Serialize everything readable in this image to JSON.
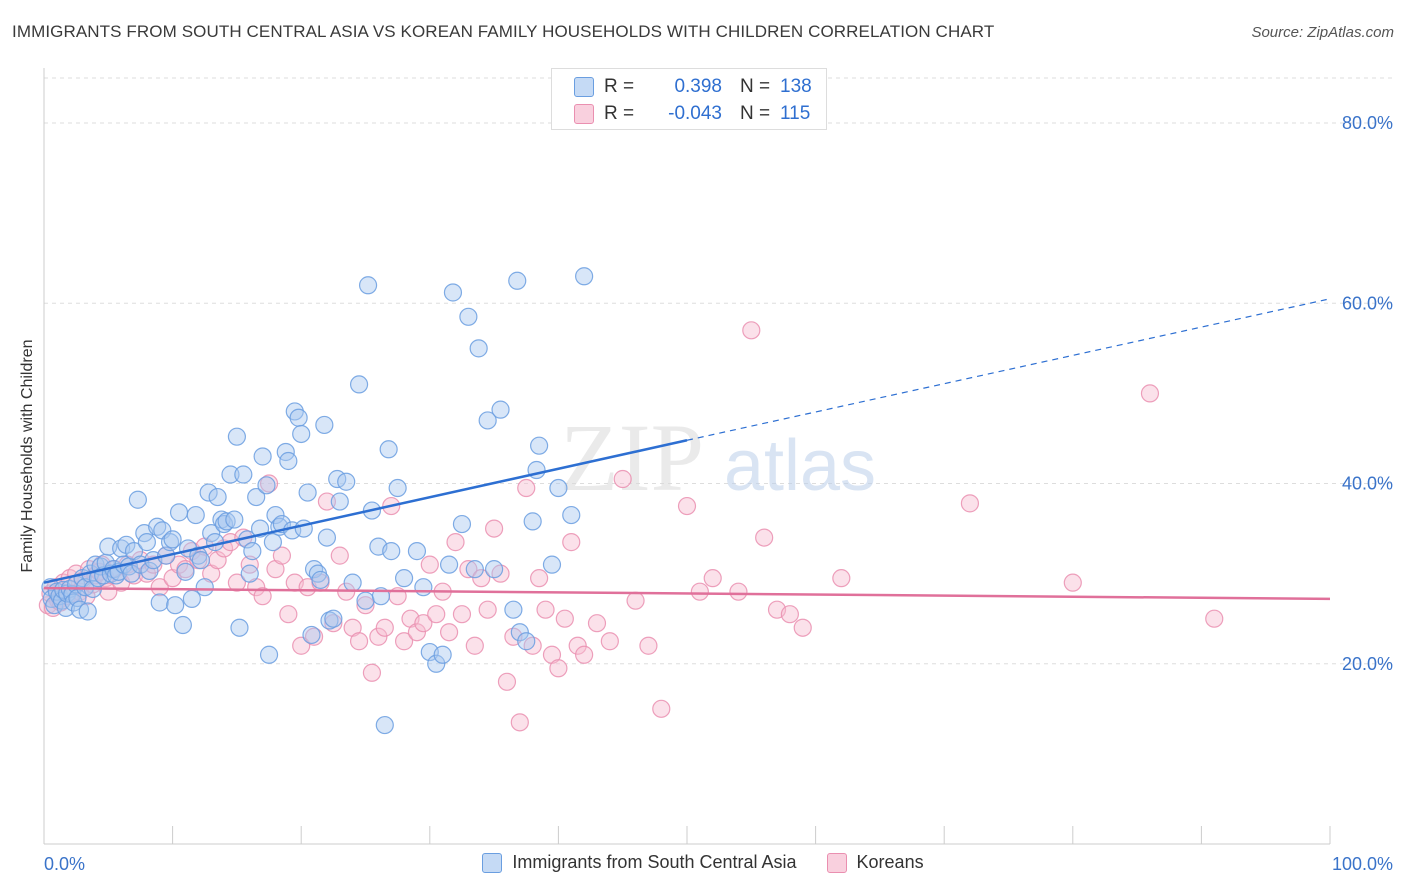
{
  "title": "IMMIGRANTS FROM SOUTH CENTRAL ASIA VS KOREAN FAMILY HOUSEHOLDS WITH CHILDREN CORRELATION CHART",
  "source": "Source: ZipAtlas.com",
  "watermark": {
    "zip": "ZIP",
    "atlas": "atlas"
  },
  "colors": {
    "blue_fill": "#a9c8f0",
    "blue_stroke": "#6a9ee0",
    "blue_line": "#2d6fd2",
    "pink_fill": "#f6bcd0",
    "pink_stroke": "#ea8fb0",
    "pink_line": "#e0709a",
    "tick_label": "#3a73c9",
    "grid": "#dddddd"
  },
  "legend": {
    "rows": [
      {
        "r_label": "R =",
        "r_value": "0.398",
        "n_label": "N =",
        "n_value": "138",
        "color": "blue"
      },
      {
        "r_label": "R =",
        "r_value": "-0.043",
        "n_label": "N =",
        "n_value": "115",
        "color": "pink"
      }
    ]
  },
  "chart_data": {
    "type": "scatter",
    "title": "IMMIGRANTS FROM SOUTH CENTRAL ASIA VS KOREAN FAMILY HOUSEHOLDS WITH CHILDREN CORRELATION CHART",
    "xlabel": "",
    "ylabel": "Family Households with Children",
    "xlim": [
      0,
      100
    ],
    "ylim": [
      0,
      85
    ],
    "x_tick_labels": [
      {
        "value": 0,
        "label": "0.0%"
      },
      {
        "value": 100,
        "label": "100.0%"
      }
    ],
    "y_tick_labels": [
      {
        "value": 20,
        "label": "20.0%"
      },
      {
        "value": 40,
        "label": "40.0%"
      },
      {
        "value": 60,
        "label": "60.0%"
      },
      {
        "value": 80,
        "label": "80.0%"
      }
    ],
    "grid": true,
    "legend_position": "bottom",
    "series": [
      {
        "name": "Immigrants from South Central Asia",
        "color": "blue",
        "trend": {
          "x0": 0,
          "y0": 29.0,
          "x1": 50,
          "y1": 44.8,
          "dashed_to_x": 100,
          "dashed_to_y": 60.5
        },
        "points": [
          [
            0.5,
            28.5
          ],
          [
            0.6,
            27.2
          ],
          [
            0.8,
            26.5
          ],
          [
            1.0,
            28.0
          ],
          [
            1.2,
            27.5
          ],
          [
            1.4,
            27.0
          ],
          [
            1.5,
            28.2
          ],
          [
            1.7,
            26.2
          ],
          [
            1.8,
            27.8
          ],
          [
            2.0,
            28.3
          ],
          [
            2.2,
            27.7
          ],
          [
            2.3,
            26.8
          ],
          [
            2.5,
            28.8
          ],
          [
            2.6,
            27.3
          ],
          [
            2.8,
            26.0
          ],
          [
            3.0,
            29.5
          ],
          [
            3.2,
            28.5
          ],
          [
            3.4,
            25.8
          ],
          [
            3.6,
            30.0
          ],
          [
            3.8,
            28.3
          ],
          [
            4.0,
            31.0
          ],
          [
            4.2,
            29.5
          ],
          [
            4.4,
            30.8
          ],
          [
            4.6,
            29.8
          ],
          [
            4.8,
            31.2
          ],
          [
            5.0,
            33.0
          ],
          [
            5.2,
            30.0
          ],
          [
            5.4,
            30.5
          ],
          [
            5.6,
            29.8
          ],
          [
            5.8,
            30.2
          ],
          [
            6.0,
            32.8
          ],
          [
            6.2,
            31.0
          ],
          [
            6.4,
            33.2
          ],
          [
            6.6,
            30.8
          ],
          [
            6.8,
            30.0
          ],
          [
            7.0,
            32.5
          ],
          [
            7.3,
            38.2
          ],
          [
            7.5,
            31.0
          ],
          [
            7.8,
            34.5
          ],
          [
            8.0,
            33.5
          ],
          [
            8.2,
            30.3
          ],
          [
            8.5,
            31.5
          ],
          [
            8.8,
            35.2
          ],
          [
            9.0,
            26.8
          ],
          [
            9.2,
            34.8
          ],
          [
            9.5,
            32.0
          ],
          [
            9.8,
            33.5
          ],
          [
            10.0,
            33.8
          ],
          [
            10.2,
            26.5
          ],
          [
            10.5,
            36.8
          ],
          [
            10.8,
            24.3
          ],
          [
            11.0,
            30.2
          ],
          [
            11.2,
            32.8
          ],
          [
            11.5,
            27.2
          ],
          [
            11.8,
            36.5
          ],
          [
            12.0,
            32.0
          ],
          [
            12.2,
            31.5
          ],
          [
            12.5,
            28.5
          ],
          [
            12.8,
            39.0
          ],
          [
            13.0,
            34.5
          ],
          [
            13.3,
            33.5
          ],
          [
            13.5,
            38.5
          ],
          [
            13.8,
            36.0
          ],
          [
            14.0,
            35.5
          ],
          [
            14.2,
            35.8
          ],
          [
            14.5,
            41.0
          ],
          [
            14.8,
            36.0
          ],
          [
            15.0,
            45.2
          ],
          [
            15.2,
            24.0
          ],
          [
            15.5,
            41.0
          ],
          [
            15.8,
            33.8
          ],
          [
            16.0,
            30.0
          ],
          [
            16.2,
            32.5
          ],
          [
            16.5,
            38.5
          ],
          [
            16.8,
            35.0
          ],
          [
            17.0,
            43.0
          ],
          [
            17.3,
            39.8
          ],
          [
            17.5,
            21.0
          ],
          [
            17.8,
            33.5
          ],
          [
            18.0,
            36.5
          ],
          [
            18.3,
            35.2
          ],
          [
            18.5,
            35.5
          ],
          [
            18.8,
            43.5
          ],
          [
            19.0,
            42.5
          ],
          [
            19.3,
            34.8
          ],
          [
            19.5,
            48.0
          ],
          [
            19.8,
            47.3
          ],
          [
            20.0,
            45.5
          ],
          [
            20.2,
            35.0
          ],
          [
            20.5,
            39.0
          ],
          [
            20.8,
            23.2
          ],
          [
            21.0,
            30.5
          ],
          [
            21.3,
            30.0
          ],
          [
            21.5,
            29.3
          ],
          [
            21.8,
            46.5
          ],
          [
            22.0,
            34.0
          ],
          [
            22.2,
            24.8
          ],
          [
            22.5,
            25.0
          ],
          [
            22.8,
            40.5
          ],
          [
            23.0,
            38.0
          ],
          [
            23.5,
            40.2
          ],
          [
            24.0,
            29.0
          ],
          [
            24.5,
            51.0
          ],
          [
            25.0,
            27.0
          ],
          [
            25.2,
            62.0
          ],
          [
            25.5,
            37.0
          ],
          [
            26.0,
            33.0
          ],
          [
            26.2,
            27.5
          ],
          [
            26.5,
            13.2
          ],
          [
            26.8,
            43.8
          ],
          [
            27.0,
            32.5
          ],
          [
            27.5,
            39.5
          ],
          [
            28.0,
            29.5
          ],
          [
            29.0,
            32.5
          ],
          [
            29.5,
            28.5
          ],
          [
            30.0,
            21.3
          ],
          [
            30.5,
            20.0
          ],
          [
            31.0,
            21.0
          ],
          [
            31.5,
            31.0
          ],
          [
            31.8,
            61.2
          ],
          [
            32.5,
            35.5
          ],
          [
            33.0,
            58.5
          ],
          [
            33.5,
            30.5
          ],
          [
            33.8,
            55.0
          ],
          [
            34.5,
            47.0
          ],
          [
            35.0,
            30.5
          ],
          [
            35.5,
            48.2
          ],
          [
            36.5,
            26.0
          ],
          [
            36.8,
            62.5
          ],
          [
            37.0,
            23.5
          ],
          [
            37.5,
            22.5
          ],
          [
            38.0,
            35.8
          ],
          [
            38.3,
            41.5
          ],
          [
            38.5,
            44.2
          ],
          [
            39.5,
            31.0
          ],
          [
            40.0,
            39.5
          ],
          [
            41.0,
            36.5
          ],
          [
            42.0,
            63.0
          ]
        ]
      },
      {
        "name": "Koreans",
        "color": "pink",
        "trend": {
          "x0": 0,
          "y0": 28.4,
          "x1": 100,
          "y1": 27.2
        },
        "points": [
          [
            0.3,
            26.5
          ],
          [
            0.5,
            27.8
          ],
          [
            0.7,
            26.2
          ],
          [
            0.9,
            28.5
          ],
          [
            1.1,
            27.0
          ],
          [
            1.3,
            26.8
          ],
          [
            1.5,
            29.0
          ],
          [
            1.8,
            27.5
          ],
          [
            2.0,
            29.5
          ],
          [
            2.2,
            27.8
          ],
          [
            2.5,
            30.0
          ],
          [
            2.8,
            28.0
          ],
          [
            3.0,
            29.2
          ],
          [
            3.3,
            27.5
          ],
          [
            3.5,
            30.5
          ],
          [
            3.8,
            28.8
          ],
          [
            4.0,
            29.8
          ],
          [
            4.3,
            30.2
          ],
          [
            4.5,
            31.0
          ],
          [
            4.8,
            29.5
          ],
          [
            5.0,
            28.0
          ],
          [
            5.5,
            30.5
          ],
          [
            6.0,
            29.0
          ],
          [
            6.5,
            31.0
          ],
          [
            7.0,
            29.8
          ],
          [
            7.5,
            31.5
          ],
          [
            8.0,
            30.0
          ],
          [
            8.5,
            31.0
          ],
          [
            9.0,
            28.5
          ],
          [
            9.5,
            32.0
          ],
          [
            10.0,
            29.5
          ],
          [
            10.5,
            31.0
          ],
          [
            11.0,
            30.5
          ],
          [
            11.5,
            32.5
          ],
          [
            12.0,
            31.5
          ],
          [
            12.5,
            33.0
          ],
          [
            13.0,
            30.0
          ],
          [
            13.5,
            31.5
          ],
          [
            14.0,
            32.8
          ],
          [
            14.5,
            33.5
          ],
          [
            15.0,
            29.0
          ],
          [
            15.5,
            34.0
          ],
          [
            16.0,
            31.0
          ],
          [
            16.5,
            28.5
          ],
          [
            17.0,
            27.5
          ],
          [
            17.5,
            40.0
          ],
          [
            18.0,
            30.5
          ],
          [
            18.5,
            32.0
          ],
          [
            19.0,
            25.5
          ],
          [
            19.5,
            29.0
          ],
          [
            20.0,
            22.0
          ],
          [
            20.5,
            28.5
          ],
          [
            21.0,
            23.0
          ],
          [
            21.5,
            29.0
          ],
          [
            22.0,
            38.0
          ],
          [
            22.5,
            24.5
          ],
          [
            23.0,
            32.0
          ],
          [
            23.5,
            28.0
          ],
          [
            24.0,
            24.0
          ],
          [
            24.5,
            22.5
          ],
          [
            25.0,
            26.5
          ],
          [
            25.5,
            19.0
          ],
          [
            26.0,
            23.0
          ],
          [
            26.5,
            24.0
          ],
          [
            27.0,
            37.5
          ],
          [
            27.5,
            27.5
          ],
          [
            28.0,
            22.5
          ],
          [
            28.5,
            25.0
          ],
          [
            29.0,
            23.5
          ],
          [
            29.5,
            24.5
          ],
          [
            30.0,
            31.0
          ],
          [
            30.5,
            25.5
          ],
          [
            31.0,
            28.0
          ],
          [
            31.5,
            23.5
          ],
          [
            32.0,
            33.5
          ],
          [
            32.5,
            25.5
          ],
          [
            33.0,
            30.5
          ],
          [
            33.5,
            22.0
          ],
          [
            34.0,
            29.5
          ],
          [
            34.5,
            26.0
          ],
          [
            35.0,
            35.0
          ],
          [
            35.5,
            30.0
          ],
          [
            36.0,
            18.0
          ],
          [
            36.5,
            23.0
          ],
          [
            37.0,
            13.5
          ],
          [
            37.5,
            39.5
          ],
          [
            38.0,
            22.0
          ],
          [
            38.5,
            29.5
          ],
          [
            39.0,
            26.0
          ],
          [
            39.5,
            21.0
          ],
          [
            40.0,
            19.5
          ],
          [
            40.5,
            25.0
          ],
          [
            41.0,
            33.5
          ],
          [
            41.5,
            22.0
          ],
          [
            42.0,
            21.0
          ],
          [
            43.0,
            24.5
          ],
          [
            44.0,
            22.5
          ],
          [
            45.0,
            40.5
          ],
          [
            46.0,
            27.0
          ],
          [
            47.0,
            22.0
          ],
          [
            48.0,
            15.0
          ],
          [
            50.0,
            37.5
          ],
          [
            51.0,
            28.0
          ],
          [
            52.0,
            29.5
          ],
          [
            54.0,
            28.0
          ],
          [
            55.0,
            57.0
          ],
          [
            56.0,
            34.0
          ],
          [
            57.0,
            26.0
          ],
          [
            58.0,
            25.5
          ],
          [
            59.0,
            24.0
          ],
          [
            62.0,
            29.5
          ],
          [
            72.0,
            37.8
          ],
          [
            80.0,
            29.0
          ],
          [
            86.0,
            50.0
          ],
          [
            91.0,
            25.0
          ]
        ]
      }
    ]
  }
}
